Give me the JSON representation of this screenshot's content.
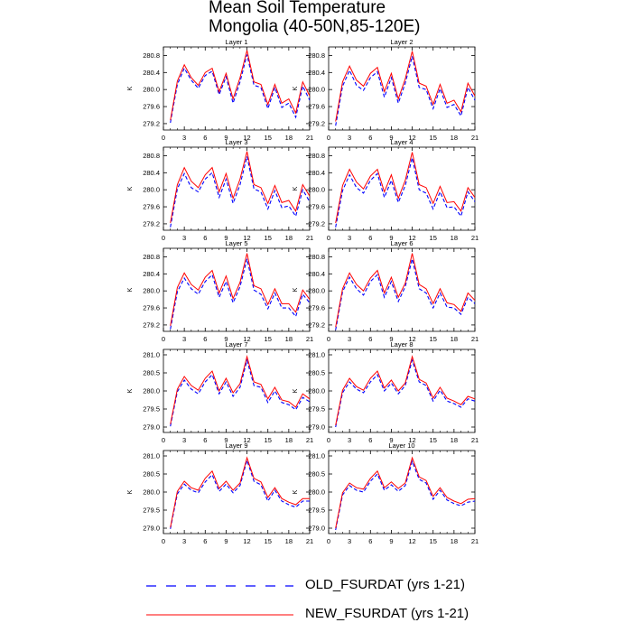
{
  "title": "Mean Soil Temperature",
  "subtitle": "Mongolia (40-50N,85-120E)",
  "colors": {
    "old": "#0000ff",
    "new": "#ff0000",
    "axis": "#000000"
  },
  "legend": {
    "old_label": "OLD_FSURDAT (yrs 1-21)",
    "new_label": "NEW_FSURDAT (yrs 1-21)"
  },
  "chart_data": [
    {
      "type": "line",
      "title": "Layer 1",
      "ylabel": "K",
      "xlim": [
        0,
        21
      ],
      "xticks": [
        0,
        3,
        6,
        9,
        12,
        15,
        18,
        21
      ],
      "ylim": [
        279.05,
        281.0
      ],
      "yticks": [
        "279.2",
        "279.6",
        "280.0",
        "280.4",
        "280.8"
      ],
      "x": [
        1,
        2,
        3,
        4,
        5,
        6,
        7,
        8,
        9,
        10,
        11,
        12,
        13,
        14,
        15,
        16,
        17,
        18,
        19,
        20,
        21
      ],
      "series": [
        {
          "name": "OLD_FSURDAT (yrs 1-21)",
          "values": [
            279.22,
            280.12,
            280.5,
            280.22,
            280.03,
            280.33,
            280.43,
            279.88,
            280.3,
            279.68,
            280.18,
            280.82,
            280.1,
            280.05,
            279.55,
            280.05,
            279.58,
            279.68,
            279.35,
            280.08,
            279.75
          ]
        },
        {
          "name": "NEW_FSURDAT (yrs 1-21)",
          "values": [
            279.28,
            280.2,
            280.58,
            280.28,
            280.1,
            280.4,
            280.5,
            279.95,
            280.38,
            279.78,
            280.28,
            280.92,
            280.18,
            280.12,
            279.65,
            280.12,
            279.68,
            279.78,
            279.45,
            280.18,
            279.85
          ]
        }
      ]
    },
    {
      "type": "line",
      "title": "Layer 2",
      "ylabel": "K",
      "xlim": [
        0,
        21
      ],
      "xticks": [
        0,
        3,
        6,
        9,
        12,
        15,
        18,
        21
      ],
      "ylim": [
        279.05,
        281.0
      ],
      "yticks": [
        "279.2",
        "279.6",
        "280.0",
        "280.4",
        "280.8"
      ],
      "x": [
        1,
        2,
        3,
        4,
        5,
        6,
        7,
        8,
        9,
        10,
        11,
        12,
        13,
        14,
        15,
        16,
        17,
        18,
        19,
        20,
        21
      ],
      "series": [
        {
          "name": "OLD_FSURDAT (yrs 1-21)",
          "values": [
            279.15,
            280.08,
            280.45,
            280.1,
            279.98,
            280.28,
            280.42,
            279.82,
            280.28,
            279.68,
            280.15,
            280.78,
            280.05,
            280.0,
            279.55,
            280.02,
            279.58,
            279.65,
            279.38,
            280.05,
            279.75
          ]
        },
        {
          "name": "NEW_FSURDAT (yrs 1-21)",
          "values": [
            279.25,
            280.18,
            280.55,
            280.22,
            280.08,
            280.38,
            280.52,
            279.95,
            280.38,
            279.78,
            280.25,
            280.9,
            280.15,
            280.08,
            279.65,
            280.12,
            279.68,
            279.75,
            279.48,
            280.15,
            279.85
          ]
        }
      ]
    },
    {
      "type": "line",
      "title": "Layer 3",
      "ylabel": "K",
      "xlim": [
        0,
        21
      ],
      "xticks": [
        0,
        3,
        6,
        9,
        12,
        15,
        18,
        21
      ],
      "ylim": [
        279.05,
        281.0
      ],
      "yticks": [
        "279.2",
        "279.6",
        "280.0",
        "280.4",
        "280.8"
      ],
      "x": [
        1,
        2,
        3,
        4,
        5,
        6,
        7,
        8,
        9,
        10,
        11,
        12,
        13,
        14,
        15,
        16,
        17,
        18,
        19,
        20,
        21
      ],
      "series": [
        {
          "name": "OLD_FSURDAT (yrs 1-21)",
          "values": [
            279.12,
            280.02,
            280.38,
            280.05,
            279.95,
            280.25,
            280.4,
            279.82,
            280.25,
            279.68,
            280.12,
            280.78,
            280.02,
            279.95,
            279.55,
            279.98,
            279.58,
            279.62,
            279.38,
            280.0,
            279.72
          ]
        },
        {
          "name": "NEW_FSURDAT (yrs 1-21)",
          "values": [
            279.22,
            280.12,
            280.52,
            280.2,
            280.05,
            280.35,
            280.52,
            279.95,
            280.38,
            279.8,
            280.25,
            280.9,
            280.12,
            280.05,
            279.68,
            280.1,
            279.7,
            279.75,
            279.5,
            280.12,
            279.85
          ]
        }
      ]
    },
    {
      "type": "line",
      "title": "Layer 4",
      "ylabel": "K",
      "xlim": [
        0,
        21
      ],
      "xticks": [
        0,
        3,
        6,
        9,
        12,
        15,
        18,
        21
      ],
      "ylim": [
        279.05,
        281.0
      ],
      "yticks": [
        "279.2",
        "279.6",
        "280.0",
        "280.4",
        "280.8"
      ],
      "x": [
        1,
        2,
        3,
        4,
        5,
        6,
        7,
        8,
        9,
        10,
        11,
        12,
        13,
        14,
        15,
        16,
        17,
        18,
        19,
        20,
        21
      ],
      "series": [
        {
          "name": "OLD_FSURDAT (yrs 1-21)",
          "values": [
            279.12,
            279.98,
            280.35,
            280.05,
            279.92,
            280.22,
            280.38,
            279.82,
            280.22,
            279.7,
            280.1,
            280.75,
            280.0,
            279.92,
            279.55,
            279.95,
            279.58,
            279.6,
            279.38,
            279.95,
            279.72
          ]
        },
        {
          "name": "NEW_FSURDAT (yrs 1-21)",
          "values": [
            279.22,
            280.1,
            280.48,
            280.18,
            280.02,
            280.32,
            280.48,
            279.95,
            280.35,
            279.8,
            280.22,
            280.88,
            280.12,
            280.05,
            279.68,
            280.08,
            279.7,
            279.72,
            279.5,
            280.05,
            279.82
          ]
        }
      ]
    },
    {
      "type": "line",
      "title": "Layer 5",
      "ylabel": "K",
      "xlim": [
        0,
        21
      ],
      "xticks": [
        0,
        3,
        6,
        9,
        12,
        15,
        18,
        21
      ],
      "ylim": [
        279.05,
        281.0
      ],
      "yticks": [
        "279.2",
        "279.6",
        "280.0",
        "280.4",
        "280.8"
      ],
      "x": [
        1,
        2,
        3,
        4,
        5,
        6,
        7,
        8,
        9,
        10,
        11,
        12,
        13,
        14,
        15,
        16,
        17,
        18,
        19,
        20,
        21
      ],
      "series": [
        {
          "name": "OLD_FSURDAT (yrs 1-21)",
          "values": [
            279.1,
            279.98,
            280.3,
            280.05,
            279.92,
            280.22,
            280.38,
            279.85,
            280.22,
            279.72,
            280.1,
            280.75,
            280.02,
            279.92,
            279.58,
            279.95,
            279.6,
            279.6,
            279.4,
            279.92,
            279.72
          ]
        },
        {
          "name": "NEW_FSURDAT (yrs 1-21)",
          "values": [
            279.18,
            280.08,
            280.42,
            280.15,
            280.02,
            280.32,
            280.48,
            279.95,
            280.35,
            279.82,
            280.2,
            280.88,
            280.12,
            280.05,
            279.68,
            280.05,
            279.7,
            279.7,
            279.5,
            280.02,
            279.8
          ]
        }
      ]
    },
    {
      "type": "line",
      "title": "Layer 6",
      "ylabel": "K",
      "xlim": [
        0,
        21
      ],
      "xticks": [
        0,
        3,
        6,
        9,
        12,
        15,
        18,
        21
      ],
      "ylim": [
        279.05,
        281.0
      ],
      "yticks": [
        "279.2",
        "279.6",
        "280.0",
        "280.4",
        "280.8"
      ],
      "x": [
        1,
        2,
        3,
        4,
        5,
        6,
        7,
        8,
        9,
        10,
        11,
        12,
        13,
        14,
        15,
        16,
        17,
        18,
        19,
        20,
        21
      ],
      "series": [
        {
          "name": "OLD_FSURDAT (yrs 1-21)",
          "values": [
            279.08,
            279.98,
            280.32,
            280.05,
            279.9,
            280.22,
            280.38,
            279.85,
            280.22,
            279.75,
            280.1,
            280.75,
            280.05,
            279.95,
            279.6,
            279.95,
            279.62,
            279.6,
            279.45,
            279.85,
            279.7
          ]
        },
        {
          "name": "NEW_FSURDAT (yrs 1-21)",
          "values": [
            279.15,
            280.05,
            280.42,
            280.15,
            280.0,
            280.3,
            280.48,
            279.95,
            280.32,
            279.85,
            280.18,
            280.88,
            280.15,
            280.05,
            279.7,
            280.05,
            279.72,
            279.68,
            279.52,
            279.95,
            279.78
          ]
        }
      ]
    },
    {
      "type": "line",
      "title": "Layer 7",
      "ylabel": "K",
      "xlim": [
        0,
        21
      ],
      "xticks": [
        0,
        3,
        6,
        9,
        12,
        15,
        18,
        21
      ],
      "ylim": [
        278.85,
        281.15
      ],
      "yticks": [
        "279.0",
        "279.5",
        "280.0",
        "280.5",
        "281.0"
      ],
      "x": [
        1,
        2,
        3,
        4,
        5,
        6,
        7,
        8,
        9,
        10,
        11,
        12,
        13,
        14,
        15,
        16,
        17,
        18,
        19,
        20,
        21
      ],
      "series": [
        {
          "name": "OLD_FSURDAT (yrs 1-21)",
          "values": [
            279.02,
            279.98,
            280.3,
            280.05,
            279.92,
            280.25,
            280.45,
            279.92,
            280.25,
            279.85,
            280.1,
            280.85,
            280.15,
            280.1,
            279.68,
            280.0,
            279.68,
            279.62,
            279.48,
            279.82,
            279.7
          ]
        },
        {
          "name": "NEW_FSURDAT (yrs 1-21)",
          "values": [
            279.08,
            280.05,
            280.4,
            280.15,
            280.02,
            280.35,
            280.55,
            280.0,
            280.35,
            279.95,
            280.2,
            280.95,
            280.25,
            280.18,
            279.78,
            280.1,
            279.75,
            279.7,
            279.55,
            279.92,
            279.78
          ]
        }
      ]
    },
    {
      "type": "line",
      "title": "Layer 8",
      "ylabel": "K",
      "xlim": [
        0,
        21
      ],
      "xticks": [
        0,
        3,
        6,
        9,
        12,
        15,
        18,
        21
      ],
      "ylim": [
        278.85,
        281.15
      ],
      "yticks": [
        "279.0",
        "279.5",
        "280.0",
        "280.5",
        "281.0"
      ],
      "x": [
        1,
        2,
        3,
        4,
        5,
        6,
        7,
        8,
        9,
        10,
        11,
        12,
        13,
        14,
        15,
        16,
        17,
        18,
        19,
        20,
        21
      ],
      "series": [
        {
          "name": "OLD_FSURDAT (yrs 1-21)",
          "values": [
            279.0,
            279.95,
            280.25,
            280.05,
            279.95,
            280.25,
            280.45,
            280.0,
            280.22,
            279.92,
            280.15,
            280.85,
            280.25,
            280.15,
            279.72,
            280.02,
            279.72,
            279.65,
            279.55,
            279.78,
            279.72
          ]
        },
        {
          "name": "NEW_FSURDAT (yrs 1-21)",
          "values": [
            279.05,
            280.02,
            280.35,
            280.12,
            280.02,
            280.35,
            280.55,
            280.08,
            280.3,
            280.0,
            280.22,
            280.95,
            280.32,
            280.22,
            279.8,
            280.1,
            279.8,
            279.72,
            279.62,
            279.85,
            279.78
          ]
        }
      ]
    },
    {
      "type": "line",
      "title": "Layer 9",
      "ylabel": "K",
      "xlim": [
        0,
        21
      ],
      "xticks": [
        0,
        3,
        6,
        9,
        12,
        15,
        18,
        21
      ],
      "ylim": [
        278.85,
        281.15
      ],
      "yticks": [
        "279.0",
        "279.5",
        "280.0",
        "280.5",
        "281.0"
      ],
      "x": [
        1,
        2,
        3,
        4,
        5,
        6,
        7,
        8,
        9,
        10,
        11,
        12,
        13,
        14,
        15,
        16,
        17,
        18,
        19,
        20,
        21
      ],
      "series": [
        {
          "name": "OLD_FSURDAT (yrs 1-21)",
          "values": [
            278.98,
            279.95,
            280.22,
            280.05,
            279.98,
            280.28,
            280.48,
            280.02,
            280.22,
            279.98,
            280.18,
            280.88,
            280.3,
            280.2,
            279.75,
            280.05,
            279.75,
            279.65,
            279.58,
            279.75,
            279.75
          ]
        },
        {
          "name": "NEW_FSURDAT (yrs 1-21)",
          "values": [
            279.02,
            280.02,
            280.3,
            280.12,
            280.05,
            280.38,
            280.58,
            280.1,
            280.3,
            280.05,
            280.25,
            280.95,
            280.38,
            280.28,
            279.85,
            280.12,
            279.82,
            279.72,
            279.65,
            279.82,
            279.82
          ]
        }
      ]
    },
    {
      "type": "line",
      "title": "Layer 10",
      "ylabel": "K",
      "xlim": [
        0,
        21
      ],
      "xticks": [
        0,
        3,
        6,
        9,
        12,
        15,
        18,
        21
      ],
      "ylim": [
        278.85,
        281.15
      ],
      "yticks": [
        "279.0",
        "279.5",
        "280.0",
        "280.5",
        "281.0"
      ],
      "x": [
        1,
        2,
        3,
        4,
        5,
        6,
        7,
        8,
        9,
        10,
        11,
        12,
        13,
        14,
        15,
        16,
        17,
        18,
        19,
        20,
        21
      ],
      "series": [
        {
          "name": "OLD_FSURDAT (yrs 1-21)",
          "values": [
            278.95,
            279.92,
            280.18,
            280.05,
            280.0,
            280.3,
            280.5,
            280.05,
            280.2,
            280.02,
            280.18,
            280.85,
            280.35,
            280.25,
            279.8,
            280.05,
            279.78,
            279.68,
            279.62,
            279.72,
            279.75
          ]
        },
        {
          "name": "NEW_FSURDAT (yrs 1-21)",
          "values": [
            279.0,
            279.98,
            280.25,
            280.12,
            280.08,
            280.38,
            280.58,
            280.12,
            280.28,
            280.1,
            280.25,
            280.95,
            280.42,
            280.32,
            279.88,
            280.12,
            279.85,
            279.75,
            279.68,
            279.8,
            279.82
          ]
        }
      ]
    }
  ]
}
